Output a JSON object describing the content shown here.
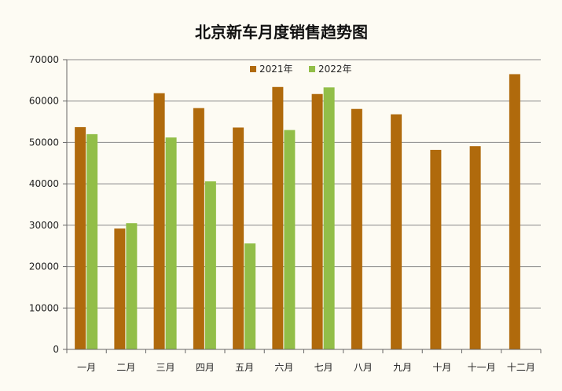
{
  "chart_data": {
    "type": "bar",
    "title": "北京新车月度销售趋势图",
    "categories": [
      "一月",
      "二月",
      "三月",
      "四月",
      "五月",
      "六月",
      "七月",
      "八月",
      "九月",
      "十月",
      "十一月",
      "十二月"
    ],
    "series": [
      {
        "name": "2021年",
        "color": "#b06a0c",
        "values": [
          53700,
          29200,
          61900,
          58300,
          53600,
          63400,
          61700,
          58100,
          56800,
          48200,
          49100,
          66500
        ]
      },
      {
        "name": "2022年",
        "color": "#92be48",
        "values": [
          52000,
          30500,
          51200,
          40600,
          25600,
          53000,
          63300,
          null,
          null,
          null,
          null,
          null
        ]
      }
    ],
    "ylim": [
      0,
      70000
    ],
    "yticks": [
      0,
      10000,
      20000,
      30000,
      40000,
      50000,
      60000,
      70000
    ],
    "grid": true,
    "legend_position": "top-center"
  }
}
